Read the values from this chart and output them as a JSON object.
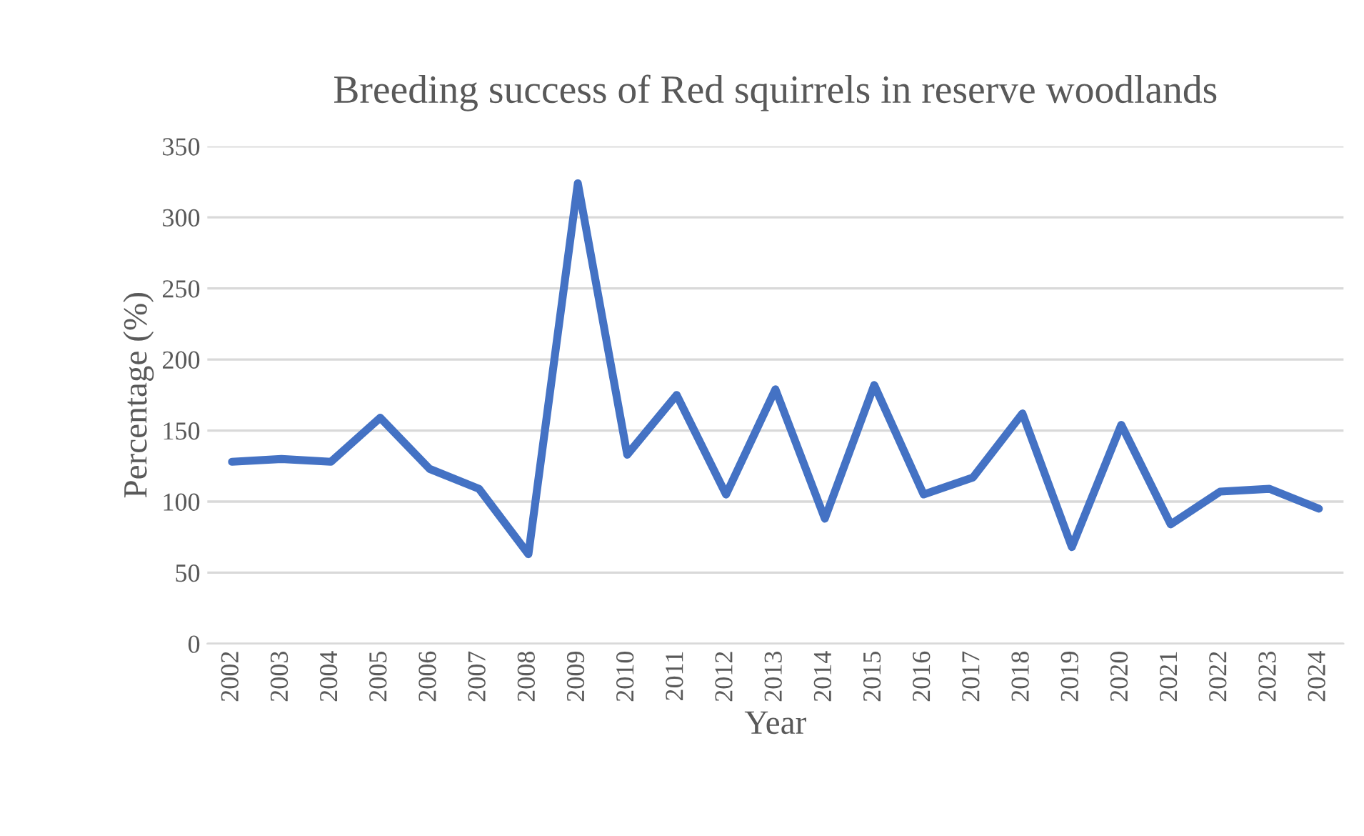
{
  "chart_data": {
    "type": "line",
    "title": "Breeding success of Red squirrels in reserve woodlands",
    "xlabel": "Year",
    "ylabel": "Percentage (%)",
    "categories": [
      "2002",
      "2003",
      "2004",
      "2005",
      "2006",
      "2007",
      "2008",
      "2009",
      "2010",
      "2011",
      "2012",
      "2013",
      "2014",
      "2015",
      "2016",
      "2017",
      "2018",
      "2019",
      "2020",
      "2021",
      "2022",
      "2023",
      "2024"
    ],
    "series": [
      {
        "color": "#4472c4",
        "values": [
          128,
          130,
          128,
          159,
          123,
          109,
          63,
          324,
          133,
          175,
          105,
          179,
          88,
          182,
          105,
          117,
          162,
          68,
          154,
          84,
          107,
          109,
          95
        ]
      }
    ],
    "ylim": [
      0,
      350
    ],
    "yticks": [
      0,
      50,
      100,
      150,
      200,
      250,
      300,
      350
    ],
    "grid": "y",
    "marker": "none",
    "line_style": "solid"
  }
}
